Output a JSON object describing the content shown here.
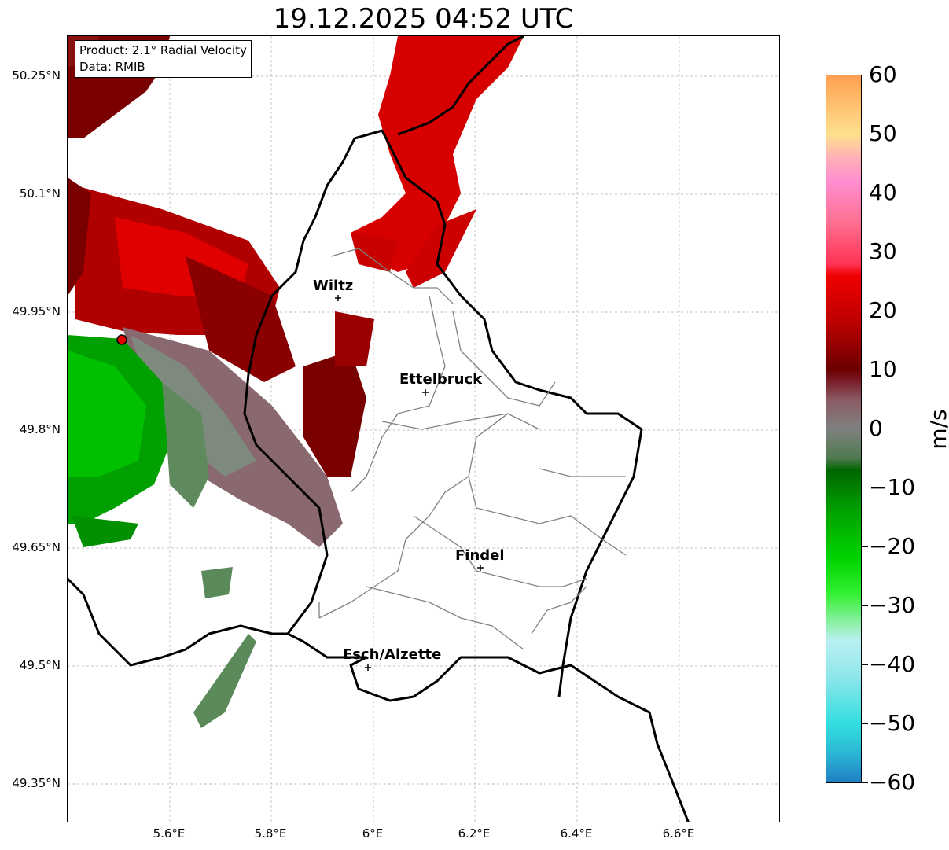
{
  "title": "19.12.2025 04:52 UTC",
  "info": {
    "product": "Product: 2.1° Radial Velocity",
    "data": "Data: RMIB"
  },
  "lat_ticks": [
    "50.25°N",
    "50.1°N",
    "49.95°N",
    "49.8°N",
    "49.65°N",
    "49.5°N",
    "49.35°N"
  ],
  "lon_ticks": [
    "5.6°E",
    "5.8°E",
    "6°E",
    "6.2°E",
    "6.4°E",
    "6.6°E"
  ],
  "cities": [
    {
      "name": "Wiltz",
      "lon": 5.93,
      "lat": 49.966
    },
    {
      "name": "Ettelbruck",
      "lon": 6.1,
      "lat": 49.847
    },
    {
      "name": "Findel",
      "lon": 6.21,
      "lat": 49.626
    },
    {
      "name": "Esch/Alzette",
      "lon": 5.99,
      "lat": 49.5
    }
  ],
  "radar_site": {
    "lon": 5.505,
    "lat": 49.914
  },
  "colorbar": {
    "unit": "m/s",
    "ticks": [
      "60",
      "50",
      "40",
      "30",
      "20",
      "10",
      "0",
      "−10",
      "−20",
      "−30",
      "−40",
      "−50",
      "−60"
    ],
    "min": -60,
    "max": 60,
    "stops": [
      {
        "v": -60,
        "c": "#1f7fc4"
      },
      {
        "v": -55,
        "c": "#2ab8d4"
      },
      {
        "v": -50,
        "c": "#33dfe0"
      },
      {
        "v": -42,
        "c": "#8fe6ea"
      },
      {
        "v": -36,
        "c": "#b9f0f2"
      },
      {
        "v": -33,
        "c": "#8ff0a8"
      },
      {
        "v": -28,
        "c": "#33f033"
      },
      {
        "v": -22,
        "c": "#00d400"
      },
      {
        "v": -14,
        "c": "#00a200"
      },
      {
        "v": -7,
        "c": "#006600"
      },
      {
        "v": -5,
        "c": "#4e7a4e"
      },
      {
        "v": 0,
        "c": "#808080"
      },
      {
        "v": 5,
        "c": "#8a5a63"
      },
      {
        "v": 8,
        "c": "#7a1f2a"
      },
      {
        "v": 10,
        "c": "#6b0000"
      },
      {
        "v": 18,
        "c": "#bb0000"
      },
      {
        "v": 26,
        "c": "#f00000"
      },
      {
        "v": 28,
        "c": "#ff3355"
      },
      {
        "v": 35,
        "c": "#ff6f90"
      },
      {
        "v": 42,
        "c": "#ff8fd0"
      },
      {
        "v": 46,
        "c": "#ffb0b8"
      },
      {
        "v": 50,
        "c": "#ffe08e"
      },
      {
        "v": 55,
        "c": "#ffc070"
      },
      {
        "v": 60,
        "c": "#ffa050"
      }
    ]
  }
}
